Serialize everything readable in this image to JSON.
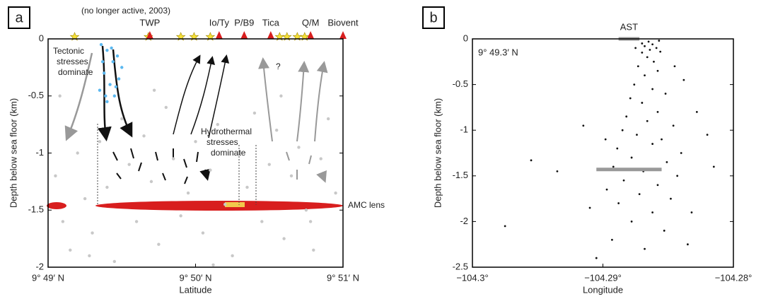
{
  "chart_data": [
    {
      "type": "scatter",
      "panel": "a",
      "ylabel": "Depth below sea floor (km)",
      "xlabel": "Latitude",
      "xlim": [
        49,
        51
      ],
      "ylim": [
        -2,
        0
      ],
      "xticks": [
        {
          "value": 49,
          "label": "9° 49′ N"
        },
        {
          "value": 50,
          "label": "9° 50′ N"
        },
        {
          "value": 51,
          "label": "9° 51′ N"
        }
      ],
      "yticks": [
        0,
        -0.5,
        -1,
        -1.5,
        -2
      ],
      "series": [
        {
          "color": "#c8c8c8",
          "x": [
            49.05,
            49.1,
            49.15,
            49.2,
            49.25,
            49.3,
            49.35,
            49.4,
            49.45,
            49.5,
            49.55,
            49.6,
            49.65,
            49.7,
            49.75,
            49.8,
            49.85,
            49.9,
            49.95,
            50.0,
            50.05,
            50.1,
            50.15,
            50.2,
            50.25,
            50.3,
            50.35,
            50.4,
            50.45,
            50.5,
            50.55,
            50.6,
            50.65,
            50.7,
            50.75,
            50.8,
            50.85,
            50.9,
            50.95,
            49.08,
            50.12,
            49.72,
            50.58,
            49.28,
            50.78
          ],
          "values": [
            -1.2,
            -1.6,
            -1.85,
            -1.0,
            -1.4,
            -1.7,
            -0.9,
            -1.3,
            -1.95,
            -0.7,
            -1.1,
            -1.6,
            -0.85,
            -1.25,
            -1.8,
            -0.6,
            -1.05,
            -1.55,
            -1.35,
            -0.9,
            -1.7,
            -1.15,
            -0.75,
            -1.45,
            -1.9,
            -1.0,
            -1.3,
            -0.65,
            -1.6,
            -1.1,
            -0.8,
            -1.75,
            -1.2,
            -0.95,
            -1.5,
            -1.85,
            -1.05,
            -0.7,
            -1.35,
            -0.5,
            -1.98,
            -0.45,
            -0.5,
            -1.9,
            -1.6
          ]
        },
        {
          "color": "#5bb8f0",
          "x": [
            49.36,
            49.4,
            49.44,
            49.38,
            49.42,
            49.47,
            49.5,
            49.35,
            49.45,
            49.4,
            49.48,
            49.37,
            49.43,
            49.46,
            49.39
          ],
          "values": [
            -0.05,
            -0.1,
            -0.2,
            -0.3,
            -0.4,
            -0.15,
            -0.25,
            -0.45,
            -0.5,
            -0.55,
            -0.35,
            -0.2,
            -0.08,
            -0.42,
            -0.5
          ]
        }
      ],
      "vents": [
        {
          "label": "TWP",
          "x": 49.69
        },
        {
          "label": "Io/Ty",
          "x": 50.16
        },
        {
          "label": "P/B9",
          "x": 50.33
        },
        {
          "label": "Tica",
          "x": 50.51
        },
        {
          "label": "Q/M",
          "x": 50.78
        },
        {
          "label": "Biovent",
          "x": 51.0
        }
      ],
      "stars": [
        49.18,
        49.68,
        49.9,
        49.99,
        50.1,
        50.57,
        50.62,
        50.69,
        50.74
      ],
      "annotations": [
        "(no longer active, 2003)",
        "Tectonic",
        "stresses",
        "dominate",
        "Hydrothermal",
        "stresses",
        "dominate",
        "?",
        "AMC lens"
      ]
    },
    {
      "type": "scatter",
      "panel": "b",
      "ylabel": "Depth below sea floor (km)",
      "xlabel": "Longitude",
      "subtitle": "9° 49.3′ N",
      "xlim": [
        -104.3,
        -104.28
      ],
      "ylim": [
        -2.5,
        0
      ],
      "xticks": [
        {
          "value": -104.3,
          "label": "−104.3°"
        },
        {
          "value": -104.29,
          "label": "−104.29°"
        },
        {
          "value": -104.28,
          "label": "−104.28°"
        }
      ],
      "yticks": [
        0,
        -0.5,
        -1,
        -1.5,
        -2,
        -2.5
      ],
      "color": "#111",
      "x": [
        -104.2865,
        -104.2862,
        -104.2868,
        -104.2859,
        -104.2864,
        -104.287,
        -104.2856,
        -104.2866,
        -104.2861,
        -104.2873,
        -104.2858,
        -104.2868,
        -104.2876,
        -104.2862,
        -104.2852,
        -104.2879,
        -104.287,
        -104.2858,
        -104.2882,
        -104.2866,
        -104.2846,
        -104.2885,
        -104.2874,
        -104.2855,
        -104.2862,
        -104.2889,
        -104.284,
        -104.2878,
        -104.2851,
        -104.2892,
        -104.2869,
        -104.2843,
        -104.2884,
        -104.2858,
        -104.2897,
        -104.2872,
        -104.2848,
        -104.2888,
        -104.2862,
        -104.2878,
        -104.2853,
        -104.2893,
        -104.2868,
        -104.2835,
        -104.2975,
        -104.2935,
        -104.2955,
        -104.2915,
        -104.282,
        -104.2815,
        -104.2828,
        -104.2838,
        -104.2898,
        -104.2832,
        -104.291,
        -104.2905,
        -104.2845,
        -104.287,
        -104.2857,
        -104.2875
      ],
      "values": [
        -0.03,
        -0.06,
        -0.08,
        -0.1,
        -0.12,
        -0.15,
        -0.14,
        -0.2,
        -0.25,
        -0.3,
        -0.35,
        -0.4,
        -0.5,
        -0.55,
        -0.6,
        -0.65,
        -0.7,
        -0.8,
        -0.85,
        -0.9,
        -0.95,
        -1.0,
        -1.05,
        -1.1,
        -1.15,
        -1.2,
        -1.25,
        -1.3,
        -1.35,
        -1.4,
        -1.45,
        -1.5,
        -1.55,
        -1.6,
        -1.65,
        -1.7,
        -1.75,
        -1.8,
        -1.9,
        -2.0,
        -2.1,
        -2.2,
        -2.3,
        -2.25,
        -2.05,
        -1.45,
        -1.33,
        -0.95,
        -1.05,
        -1.4,
        -0.8,
        -0.45,
        -1.1,
        -1.9,
        -1.85,
        -2.4,
        -0.3,
        -0.05,
        -0.02,
        -0.1
      ],
      "segments": [
        {
          "label": "AST",
          "x": [
            -104.2888,
            -104.2872
          ],
          "y": 0
        },
        {
          "x": [
            -104.2905,
            -104.2855
          ],
          "y": -1.43
        }
      ]
    }
  ]
}
